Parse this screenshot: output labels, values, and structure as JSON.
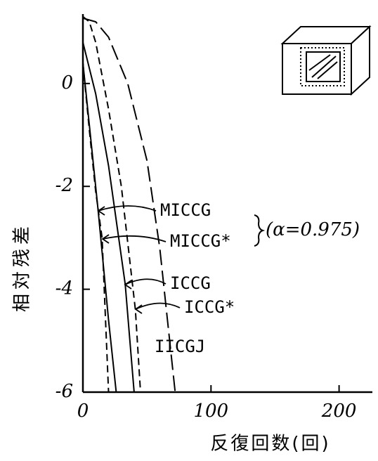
{
  "chart_data": {
    "type": "line",
    "x_label": "反復回数(回)",
    "y_label": "相対残差",
    "annotation": "(α=0.975)",
    "xlim": [
      0,
      226
    ],
    "xticks": [
      0,
      100,
      200
    ],
    "ylim": [
      -6,
      1.35
    ],
    "yticks": [
      -6,
      -4,
      -2,
      0
    ],
    "grid": false,
    "series": [
      {
        "name": "MICCG",
        "color": "#000000",
        "dash": "solid",
        "x": [
          0,
          5,
          12,
          20,
          26
        ],
        "values": [
          0.4,
          -0.8,
          -2.5,
          -4.6,
          -6
        ]
      },
      {
        "name": "MICCG*",
        "color": "#000000",
        "dash": "dashed",
        "x": [
          0,
          5,
          10,
          15,
          20
        ],
        "values": [
          0.4,
          -0.9,
          -2.1,
          -3.0,
          -6
        ]
      },
      {
        "name": "ICCG",
        "color": "#000000",
        "dash": "solid",
        "x": [
          0,
          10,
          20,
          33,
          40
        ],
        "values": [
          0.8,
          -0.2,
          -1.6,
          -3.9,
          -6
        ]
      },
      {
        "name": "ICCG*",
        "color": "#000000",
        "dash": "dashed",
        "x": [
          0,
          5,
          10,
          20,
          30,
          41,
          45
        ],
        "values": [
          1.3,
          1.2,
          0.8,
          -0.5,
          -2.0,
          -4.4,
          -6
        ]
      },
      {
        "name": "IICGJ",
        "color": "#000000",
        "dash": "longdash",
        "x": [
          0,
          10,
          20,
          35,
          50,
          60,
          72
        ],
        "values": [
          1.27,
          1.2,
          0.9,
          0,
          -1.5,
          -3.2,
          -6
        ]
      }
    ]
  }
}
